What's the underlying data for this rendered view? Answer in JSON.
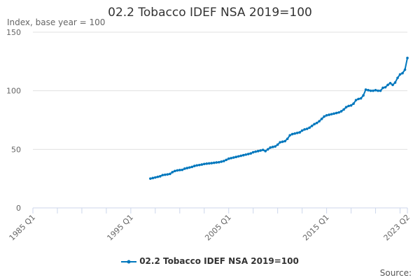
{
  "chart_data": {
    "type": "line",
    "title": "02.2 Tobacco IDEF NSA 2019=100",
    "ylabel": "Index, base year = 100",
    "xlabel": "",
    "ylim": [
      0,
      150
    ],
    "yticks": [
      "0",
      "50",
      "100",
      "150"
    ],
    "xlim": [
      "1985 Q1",
      "2023 Q2"
    ],
    "xticks": [
      "1985 Q1",
      "1995 Q1",
      "2005 Q1",
      "2015 Q1",
      "2023 Q2"
    ],
    "grid": true,
    "legend_placement": "bottom",
    "series": [
      {
        "name": "02.2 Tobacco IDEF NSA 2019=100",
        "color": "#0077bd",
        "start": "1997 Q1",
        "values": [
          25,
          25.5,
          26,
          26.5,
          27,
          28,
          28.3,
          28.6,
          29,
          30.5,
          31.5,
          32,
          32.3,
          32.5,
          33.5,
          34,
          34.5,
          35,
          35.8,
          36.3,
          36.6,
          37,
          37.5,
          37.8,
          38,
          38.2,
          38.5,
          38.8,
          39,
          39.5,
          40,
          41,
          42,
          42.5,
          43,
          43.5,
          44,
          44.5,
          45,
          45.5,
          46,
          46.5,
          47.5,
          48,
          48.5,
          49,
          49.5,
          48.5,
          50,
          51.5,
          52,
          52.5,
          54,
          56,
          56.5,
          57,
          59,
          62,
          63,
          63.5,
          64,
          64.5,
          66,
          67,
          67.5,
          68.5,
          70,
          71.5,
          72.5,
          74,
          76,
          78,
          79,
          79.5,
          80,
          80.5,
          81,
          81.5,
          82.5,
          84,
          86,
          87,
          87.5,
          89,
          92,
          93,
          93.5,
          96,
          101,
          100.5,
          100,
          100,
          100.5,
          100,
          100,
          102.5,
          103,
          105,
          106.5,
          105,
          107,
          111,
          114,
          115,
          118,
          128
        ]
      }
    ]
  },
  "source_label": "Source:"
}
